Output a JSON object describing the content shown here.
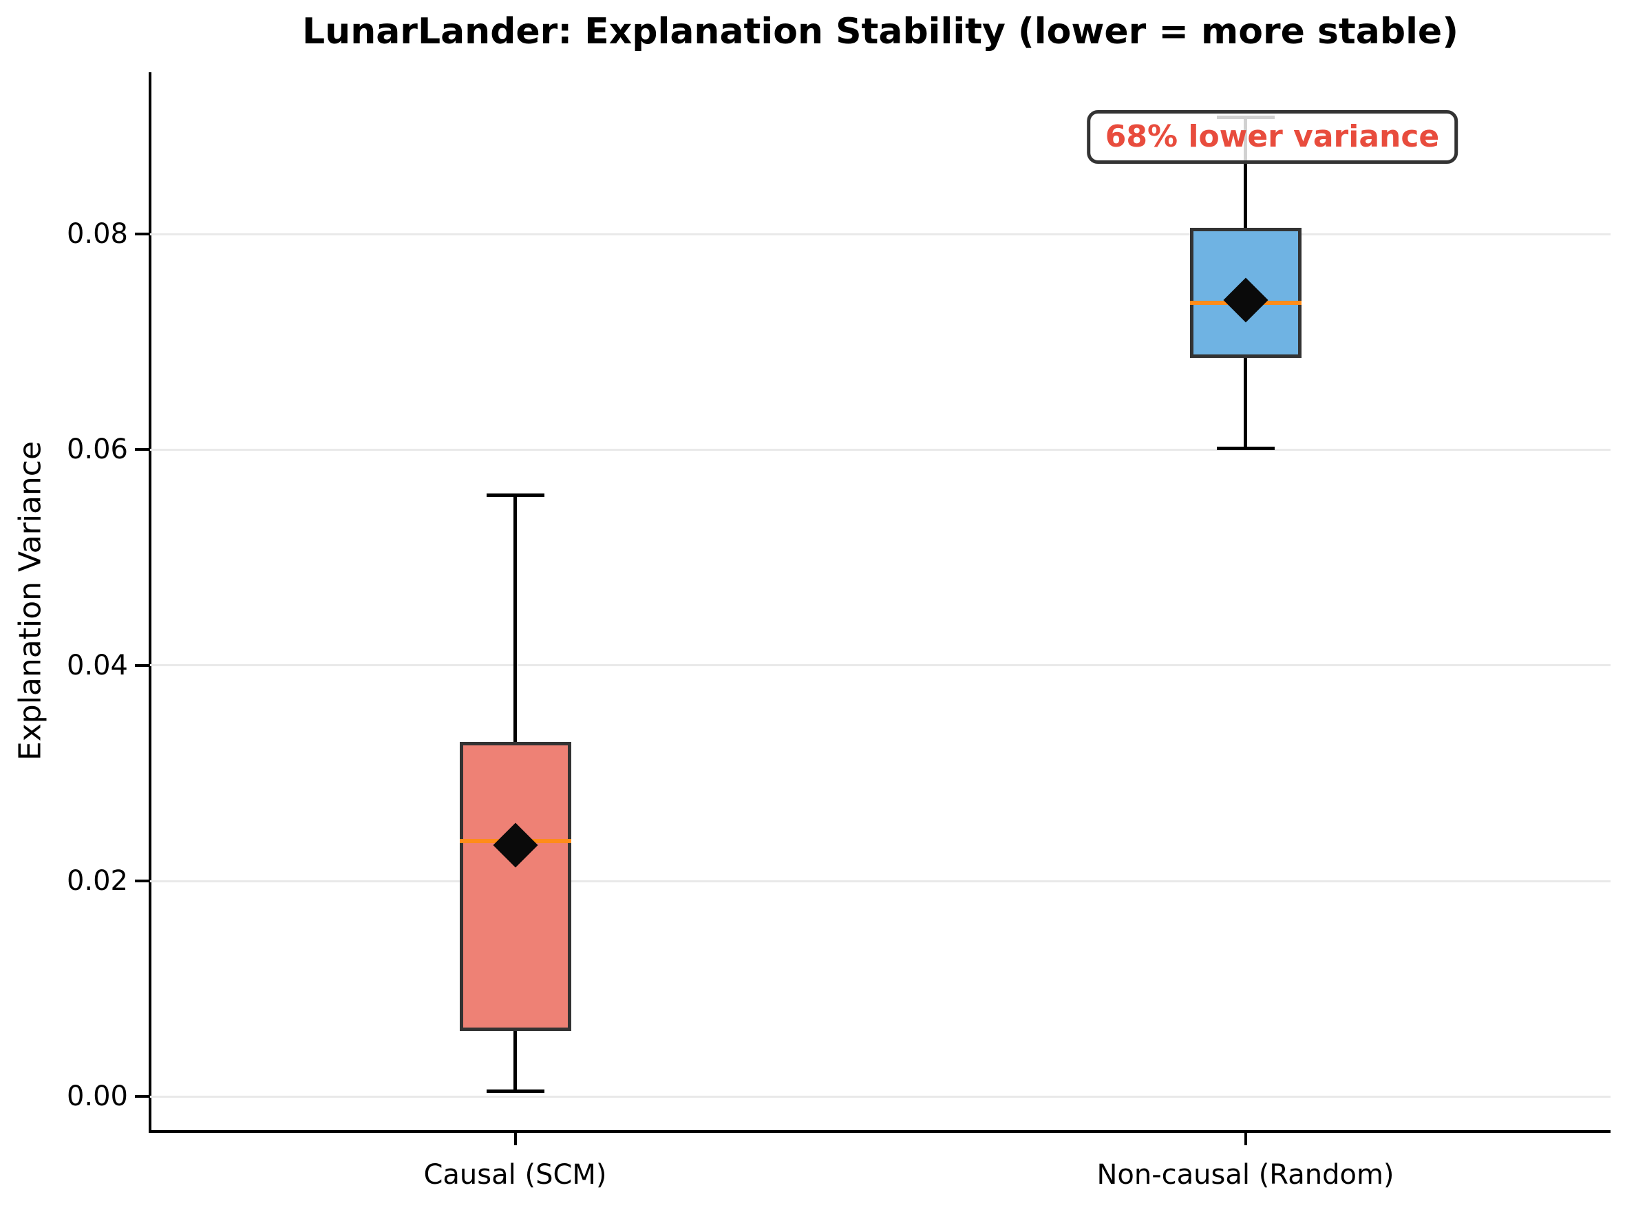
{
  "title": "LunarLander: Explanation Stability (lower = more stable)",
  "y_axis": {
    "label": "Explanation Variance",
    "tick_labels": [
      "0.00",
      "0.02",
      "0.04",
      "0.06",
      "0.08"
    ]
  },
  "x_axis": {
    "tick_labels": [
      "Causal (SCM)",
      "Non-causal (Random)"
    ]
  },
  "annotation": {
    "text": "68% lower variance",
    "color": "#e84c3d"
  },
  "colors": {
    "causal_box_fill": "#ee8175",
    "noncausal_box_fill": "#6fb3e3",
    "box_edge": "#333333",
    "median_line": "#ff8c1a",
    "mean_marker": "#0a0a0a",
    "whisker": "#000000",
    "grid": "#e9e9e9",
    "annotation_text": "#e84c3d"
  },
  "chart_data": {
    "type": "box",
    "title": "LunarLander: Explanation Stability (lower = more stable)",
    "xlabel": "",
    "ylabel": "Explanation Variance",
    "categories": [
      "Causal (SCM)",
      "Non-causal (Random)"
    ],
    "series": [
      {
        "name": "Causal (SCM)",
        "whisker_low": 0.0005,
        "q1": 0.0061,
        "median": 0.0237,
        "mean": 0.0233,
        "q3": 0.0329,
        "whisker_high": 0.0558,
        "fill": "#ee8175"
      },
      {
        "name": "Non-causal (Random)",
        "whisker_low": 0.0601,
        "q1": 0.0685,
        "median": 0.0736,
        "mean": 0.0739,
        "q3": 0.0806,
        "whisker_high": 0.0908,
        "fill": "#6fb3e3"
      }
    ],
    "yticks": [
      0.0,
      0.02,
      0.04,
      0.06,
      0.08
    ],
    "ytick_labels": [
      "0.00",
      "0.02",
      "0.04",
      "0.06",
      "0.08"
    ],
    "ylim": [
      -0.0031,
      0.095
    ],
    "grid": true,
    "legend": "none",
    "median_color": "#ff8c1a",
    "annotation_text": "68% lower variance"
  }
}
